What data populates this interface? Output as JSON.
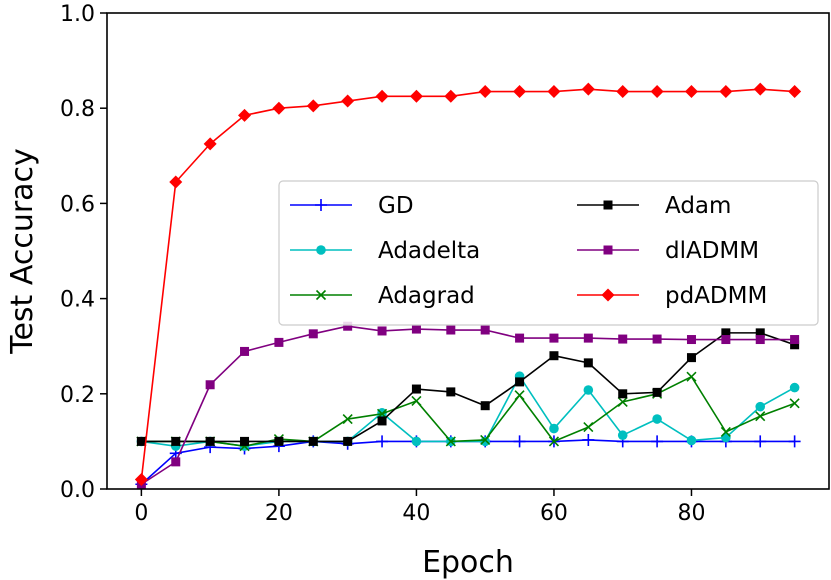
{
  "chart_data": {
    "type": "line",
    "title": "",
    "xlabel": "Epoch",
    "ylabel": "Test Accuracy",
    "xlim": [
      -5,
      100
    ],
    "ylim": [
      0.0,
      1.0
    ],
    "xticks": [
      0,
      20,
      40,
      60,
      80
    ],
    "xtick_labels": [
      "0",
      "20",
      "40",
      "60",
      "80"
    ],
    "yticks": [
      0.0,
      0.2,
      0.4,
      0.6,
      0.8,
      1.0
    ],
    "ytick_labels": [
      "0.0",
      "0.2",
      "0.4",
      "0.6",
      "0.8",
      "1.0"
    ],
    "grid": false,
    "legend_position": "center-right",
    "x": [
      0,
      5,
      10,
      15,
      20,
      25,
      30,
      35,
      40,
      45,
      50,
      55,
      60,
      65,
      70,
      75,
      80,
      85,
      90,
      95
    ],
    "series": [
      {
        "name": "GD",
        "color": "#0000ff",
        "marker": "plus",
        "values": [
          0.01,
          0.075,
          0.088,
          0.085,
          0.09,
          0.1,
          0.095,
          0.1,
          0.1,
          0.1,
          0.1,
          0.1,
          0.1,
          0.103,
          0.1,
          0.1,
          0.1,
          0.1,
          0.1,
          0.1
        ]
      },
      {
        "name": "Adadelta",
        "color": "#00bfbf",
        "marker": "circle",
        "values": [
          0.1,
          0.09,
          0.1,
          0.09,
          0.1,
          0.1,
          0.1,
          0.16,
          0.1,
          0.1,
          0.1,
          0.237,
          0.127,
          0.208,
          0.113,
          0.147,
          0.102,
          0.108,
          0.173,
          0.213
        ]
      },
      {
        "name": "Adagrad",
        "color": "#008000",
        "marker": "x",
        "values": [
          0.1,
          0.1,
          0.1,
          0.09,
          0.105,
          0.1,
          0.147,
          0.158,
          0.185,
          0.1,
          0.103,
          0.197,
          0.1,
          0.13,
          0.183,
          0.2,
          0.236,
          0.12,
          0.153,
          0.18
        ]
      },
      {
        "name": "Adam",
        "color": "#000000",
        "marker": "square",
        "values": [
          0.1,
          0.1,
          0.1,
          0.1,
          0.1,
          0.1,
          0.1,
          0.143,
          0.21,
          0.204,
          0.175,
          0.225,
          0.28,
          0.265,
          0.2,
          0.203,
          0.276,
          0.328,
          0.328,
          0.303
        ]
      },
      {
        "name": "dlADMM",
        "color": "#800080",
        "marker": "square",
        "values": [
          0.01,
          0.057,
          0.219,
          0.289,
          0.308,
          0.326,
          0.342,
          0.332,
          0.336,
          0.334,
          0.334,
          0.317,
          0.317,
          0.317,
          0.315,
          0.315,
          0.314,
          0.314,
          0.314,
          0.314
        ]
      },
      {
        "name": "pdADMM",
        "color": "#ff0000",
        "marker": "diamond",
        "values": [
          0.02,
          0.645,
          0.725,
          0.785,
          0.8,
          0.805,
          0.815,
          0.825,
          0.825,
          0.825,
          0.835,
          0.835,
          0.835,
          0.84,
          0.835,
          0.835,
          0.835,
          0.835,
          0.84,
          0.835
        ]
      }
    ]
  }
}
